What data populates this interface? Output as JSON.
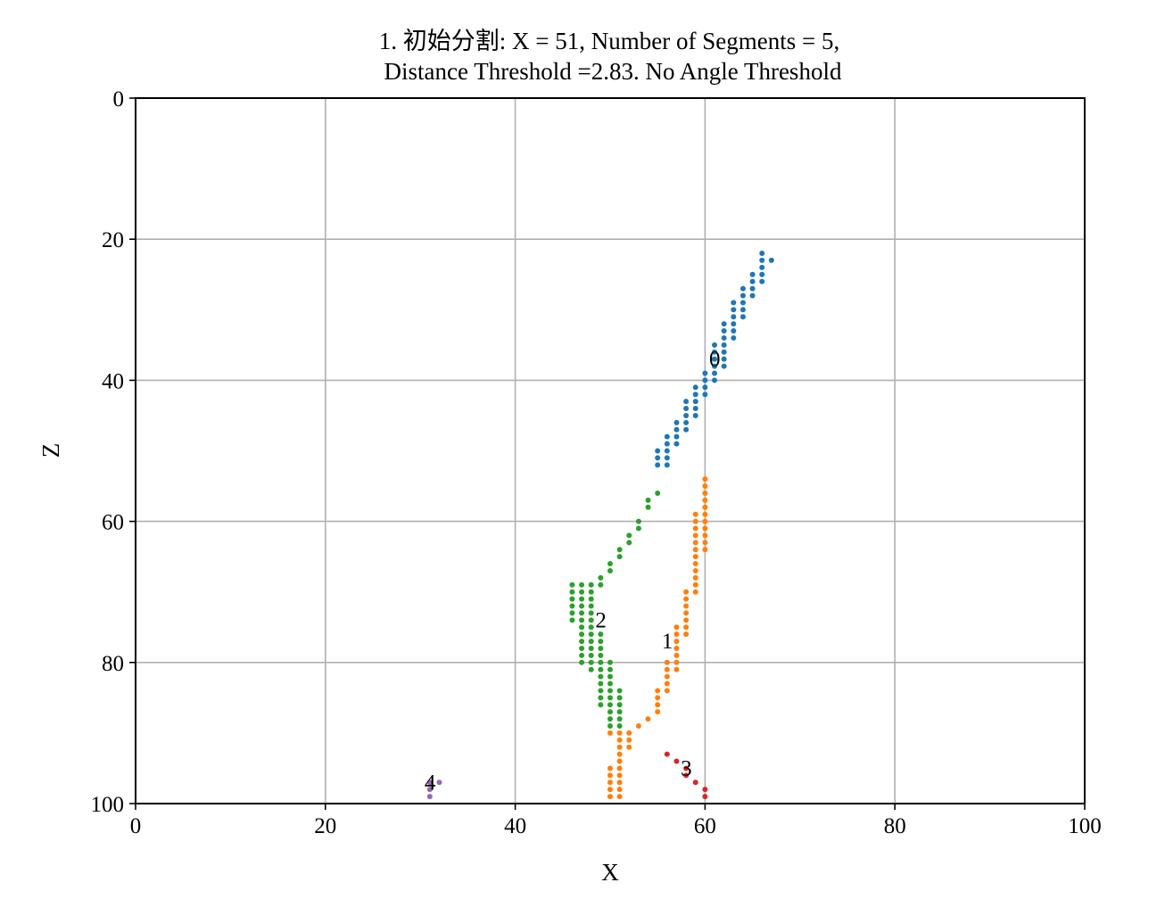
{
  "chart_data": {
    "type": "scatter",
    "title": [
      "1. 初始分割: X = 51, Number of Segments = 5,",
      "Distance Threshold =2.83. No Angle Threshold"
    ],
    "xlabel": "X",
    "ylabel": "Z",
    "xlim": [
      0,
      100
    ],
    "ylim": [
      0,
      100
    ],
    "y_inverted": true,
    "grid": true,
    "xticks": [
      "0",
      "20",
      "40",
      "60",
      "80",
      "100"
    ],
    "yticks": [
      "0",
      "20",
      "40",
      "60",
      "80",
      "100"
    ],
    "series": [
      {
        "label": "0",
        "color": "#1f77b4",
        "label_pos": [
          61,
          37
        ],
        "points": [
          [
            66,
            22
          ],
          [
            67,
            23
          ],
          [
            66,
            23
          ],
          [
            66,
            24
          ],
          [
            65,
            25
          ],
          [
            66,
            25
          ],
          [
            65,
            26
          ],
          [
            66,
            26
          ],
          [
            64,
            27
          ],
          [
            65,
            27
          ],
          [
            64,
            28
          ],
          [
            65,
            28
          ],
          [
            63,
            29
          ],
          [
            64,
            29
          ],
          [
            63,
            30
          ],
          [
            64,
            30
          ],
          [
            63,
            31
          ],
          [
            64,
            31
          ],
          [
            62,
            32
          ],
          [
            63,
            32
          ],
          [
            62,
            33
          ],
          [
            63,
            33
          ],
          [
            62,
            34
          ],
          [
            63,
            34
          ],
          [
            61,
            35
          ],
          [
            62,
            35
          ],
          [
            61,
            36
          ],
          [
            62,
            36
          ],
          [
            61,
            37
          ],
          [
            62,
            37
          ],
          [
            61,
            38
          ],
          [
            62,
            38
          ],
          [
            60,
            39
          ],
          [
            61,
            39
          ],
          [
            60,
            40
          ],
          [
            61,
            40
          ],
          [
            59,
            41
          ],
          [
            60,
            41
          ],
          [
            59,
            42
          ],
          [
            60,
            42
          ],
          [
            58,
            43
          ],
          [
            59,
            43
          ],
          [
            58,
            44
          ],
          [
            59,
            44
          ],
          [
            58,
            45
          ],
          [
            59,
            45
          ],
          [
            57,
            46
          ],
          [
            58,
            46
          ],
          [
            57,
            47
          ],
          [
            58,
            47
          ],
          [
            56,
            48
          ],
          [
            57,
            48
          ],
          [
            56,
            49
          ],
          [
            57,
            49
          ],
          [
            55,
            50
          ],
          [
            56,
            50
          ],
          [
            55,
            51
          ],
          [
            56,
            51
          ],
          [
            55,
            52
          ],
          [
            56,
            52
          ]
        ]
      },
      {
        "label": "1",
        "color": "#ff7f0e",
        "label_pos": [
          56,
          77
        ],
        "points": [
          [
            60,
            54
          ],
          [
            60,
            55
          ],
          [
            60,
            56
          ],
          [
            60,
            57
          ],
          [
            60,
            58
          ],
          [
            59,
            59
          ],
          [
            60,
            59
          ],
          [
            59,
            60
          ],
          [
            60,
            60
          ],
          [
            59,
            61
          ],
          [
            60,
            61
          ],
          [
            59,
            62
          ],
          [
            60,
            62
          ],
          [
            59,
            63
          ],
          [
            60,
            63
          ],
          [
            59,
            64
          ],
          [
            60,
            64
          ],
          [
            59,
            65
          ],
          [
            59,
            66
          ],
          [
            59,
            67
          ],
          [
            59,
            68
          ],
          [
            59,
            69
          ],
          [
            58,
            70
          ],
          [
            59,
            70
          ],
          [
            58,
            71
          ],
          [
            58,
            72
          ],
          [
            58,
            73
          ],
          [
            58,
            74
          ],
          [
            57,
            75
          ],
          [
            58,
            75
          ],
          [
            57,
            76
          ],
          [
            58,
            76
          ],
          [
            57,
            77
          ],
          [
            57,
            78
          ],
          [
            57,
            79
          ],
          [
            56,
            80
          ],
          [
            57,
            80
          ],
          [
            56,
            81
          ],
          [
            57,
            81
          ],
          [
            56,
            82
          ],
          [
            56,
            83
          ],
          [
            55,
            84
          ],
          [
            56,
            84
          ],
          [
            55,
            85
          ],
          [
            55,
            86
          ],
          [
            55,
            87
          ],
          [
            54,
            88
          ],
          [
            53,
            89
          ],
          [
            52,
            90
          ],
          [
            51,
            90
          ],
          [
            50,
            90
          ],
          [
            52,
            91
          ],
          [
            51,
            91
          ],
          [
            52,
            92
          ],
          [
            51,
            92
          ],
          [
            51,
            93
          ],
          [
            51,
            94
          ],
          [
            50,
            95
          ],
          [
            51,
            95
          ],
          [
            50,
            96
          ],
          [
            51,
            96
          ],
          [
            50,
            97
          ],
          [
            51,
            97
          ],
          [
            50,
            98
          ],
          [
            51,
            98
          ],
          [
            50,
            99
          ],
          [
            51,
            99
          ]
        ]
      },
      {
        "label": "2",
        "color": "#2ca02c",
        "label_pos": [
          49,
          74
        ],
        "points": [
          [
            55,
            56
          ],
          [
            54,
            57
          ],
          [
            54,
            58
          ],
          [
            53,
            60
          ],
          [
            53,
            61
          ],
          [
            52,
            62
          ],
          [
            52,
            63
          ],
          [
            51,
            64
          ],
          [
            51,
            65
          ],
          [
            50,
            66
          ],
          [
            50,
            67
          ],
          [
            49,
            68
          ],
          [
            49,
            69
          ],
          [
            46,
            69
          ],
          [
            47,
            69
          ],
          [
            48,
            69
          ],
          [
            46,
            70
          ],
          [
            47,
            70
          ],
          [
            48,
            70
          ],
          [
            46,
            71
          ],
          [
            47,
            71
          ],
          [
            48,
            71
          ],
          [
            46,
            72
          ],
          [
            47,
            72
          ],
          [
            48,
            72
          ],
          [
            46,
            73
          ],
          [
            47,
            73
          ],
          [
            48,
            73
          ],
          [
            46,
            74
          ],
          [
            47,
            74
          ],
          [
            48,
            74
          ],
          [
            47,
            75
          ],
          [
            48,
            75
          ],
          [
            47,
            76
          ],
          [
            48,
            76
          ],
          [
            49,
            76
          ],
          [
            47,
            77
          ],
          [
            48,
            77
          ],
          [
            49,
            77
          ],
          [
            47,
            78
          ],
          [
            48,
            78
          ],
          [
            49,
            78
          ],
          [
            47,
            79
          ],
          [
            48,
            79
          ],
          [
            49,
            79
          ],
          [
            47,
            80
          ],
          [
            48,
            80
          ],
          [
            49,
            80
          ],
          [
            50,
            80
          ],
          [
            48,
            81
          ],
          [
            49,
            81
          ],
          [
            50,
            81
          ],
          [
            49,
            82
          ],
          [
            50,
            82
          ],
          [
            49,
            83
          ],
          [
            50,
            83
          ],
          [
            49,
            84
          ],
          [
            50,
            84
          ],
          [
            51,
            84
          ],
          [
            49,
            85
          ],
          [
            50,
            85
          ],
          [
            51,
            85
          ],
          [
            49,
            86
          ],
          [
            50,
            86
          ],
          [
            51,
            86
          ],
          [
            50,
            87
          ],
          [
            51,
            87
          ],
          [
            50,
            88
          ],
          [
            51,
            88
          ],
          [
            50,
            89
          ],
          [
            51,
            89
          ]
        ]
      },
      {
        "label": "3",
        "color": "#d62728",
        "label_pos": [
          58,
          95
        ],
        "points": [
          [
            56,
            93
          ],
          [
            57,
            94
          ],
          [
            58,
            95
          ],
          [
            58,
            96
          ],
          [
            59,
            97
          ],
          [
            60,
            98
          ],
          [
            60,
            99
          ]
        ]
      },
      {
        "label": "4",
        "color": "#9467bd",
        "label_pos": [
          31,
          97
        ],
        "points": [
          [
            32,
            97
          ],
          [
            31,
            97
          ],
          [
            31,
            98
          ],
          [
            31,
            99
          ]
        ]
      }
    ]
  }
}
